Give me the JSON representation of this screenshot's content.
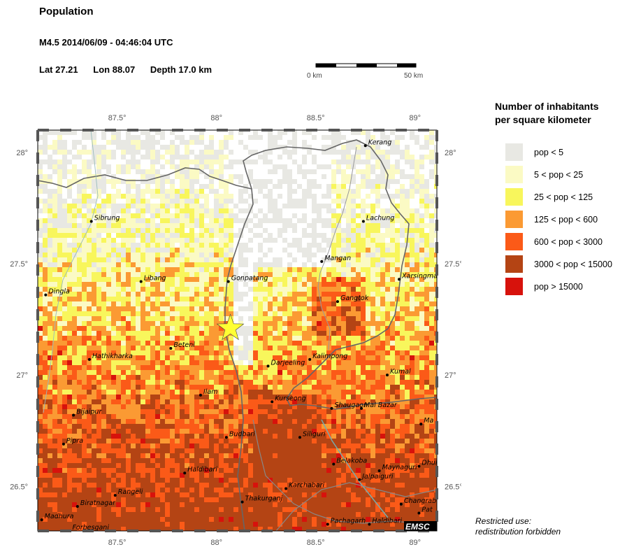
{
  "header": {
    "title": "Population",
    "event": "M4.5  2014/06/09 - 04:46:04 UTC",
    "lat": "Lat 27.21",
    "lon": "Lon  88.07",
    "depth": "Depth  17.0 km"
  },
  "scalebar": {
    "left_label": "0 km",
    "right_label": "50 km"
  },
  "legend": {
    "title_line1": "Number of inhabitants",
    "title_line2": "per square kilometer",
    "items": [
      {
        "label": "pop < 5",
        "color": "#e8e8e3"
      },
      {
        "label": "5 < pop < 25",
        "color": "#fbfac4"
      },
      {
        "label": "25 < pop < 125",
        "color": "#f8f65c"
      },
      {
        "label": "125 < pop < 600",
        "color": "#fb9a33"
      },
      {
        "label": "600 < pop < 3000",
        "color": "#fb5a18"
      },
      {
        "label": "3000 < pop < 15000",
        "color": "#b44414"
      },
      {
        "label": "pop > 15000",
        "color": "#d7120c"
      }
    ]
  },
  "map": {
    "lon_ticks": [
      "87.5°",
      "88°",
      "88.5°",
      "89°"
    ],
    "lat_ticks": [
      "28°",
      "27.5°",
      "27°",
      "26.5°"
    ],
    "epicenter": {
      "lat": 27.21,
      "lon": 88.07,
      "color": "#ffff33"
    },
    "cities": [
      {
        "name": "Kerang",
        "lat": 28.03,
        "lon": 88.75
      },
      {
        "name": "Sibrung",
        "lat": 27.69,
        "lon": 87.37
      },
      {
        "name": "Lachung",
        "lat": 27.69,
        "lon": 88.74
      },
      {
        "name": "Mangan",
        "lat": 27.51,
        "lon": 88.53
      },
      {
        "name": "Xarsingma",
        "lat": 27.43,
        "lon": 88.92
      },
      {
        "name": "Libang",
        "lat": 27.42,
        "lon": 87.62
      },
      {
        "name": "Gonpatang",
        "lat": 27.42,
        "lon": 88.06
      },
      {
        "name": "Dingla",
        "lat": 27.36,
        "lon": 87.14
      },
      {
        "name": "Gangtok",
        "lat": 27.33,
        "lon": 88.61
      },
      {
        "name": "Beteni",
        "lat": 27.12,
        "lon": 87.77
      },
      {
        "name": "Hathikharka",
        "lat": 27.07,
        "lon": 87.36
      },
      {
        "name": "Kalimpong",
        "lat": 27.07,
        "lon": 88.47
      },
      {
        "name": "Darjeeling",
        "lat": 27.04,
        "lon": 88.26
      },
      {
        "name": "Kumal",
        "lat": 27.0,
        "lon": 88.86
      },
      {
        "name": "Ilam",
        "lat": 26.91,
        "lon": 87.92
      },
      {
        "name": "Kurseong",
        "lat": 26.88,
        "lon": 88.28
      },
      {
        "name": "Shaugaon",
        "lat": 26.85,
        "lon": 88.58
      },
      {
        "name": "Mal Bazar",
        "lat": 26.85,
        "lon": 88.73
      },
      {
        "name": "Bijaipur",
        "lat": 26.82,
        "lon": 87.28
      },
      {
        "name": "Ma",
        "lat": 26.78,
        "lon": 89.03
      },
      {
        "name": "Budbari",
        "lat": 26.72,
        "lon": 88.05
      },
      {
        "name": "Siliguri",
        "lat": 26.72,
        "lon": 88.42
      },
      {
        "name": "Pipra",
        "lat": 26.69,
        "lon": 87.23
      },
      {
        "name": "Belakoba",
        "lat": 26.6,
        "lon": 88.59
      },
      {
        "name": "Maynaguri",
        "lat": 26.57,
        "lon": 88.82
      },
      {
        "name": "Dhul",
        "lat": 26.59,
        "lon": 89.02
      },
      {
        "name": "Haldibari",
        "lat": 26.56,
        "lon": 87.84
      },
      {
        "name": "Jalpaiguri",
        "lat": 26.53,
        "lon": 88.72
      },
      {
        "name": "Karchabari",
        "lat": 26.49,
        "lon": 88.35
      },
      {
        "name": "Rangeli",
        "lat": 26.46,
        "lon": 87.49
      },
      {
        "name": "Thakurganj",
        "lat": 26.43,
        "lon": 88.13
      },
      {
        "name": "Biratnagar",
        "lat": 26.41,
        "lon": 87.3
      },
      {
        "name": "Changrab",
        "lat": 26.42,
        "lon": 88.93
      },
      {
        "name": "Pat",
        "lat": 26.38,
        "lon": 89.02
      },
      {
        "name": "Madhura",
        "lat": 26.35,
        "lon": 87.12
      },
      {
        "name": "Pachagarh",
        "lat": 26.33,
        "lon": 88.56
      },
      {
        "name": "Haldibari",
        "lat": 26.33,
        "lon": 88.77
      },
      {
        "name": "Forbesganj",
        "lat": 26.3,
        "lon": 87.26
      }
    ]
  },
  "logo": "EMSC",
  "notice": {
    "line1": "Restricted use:",
    "line2": "redistribution forbidden"
  }
}
